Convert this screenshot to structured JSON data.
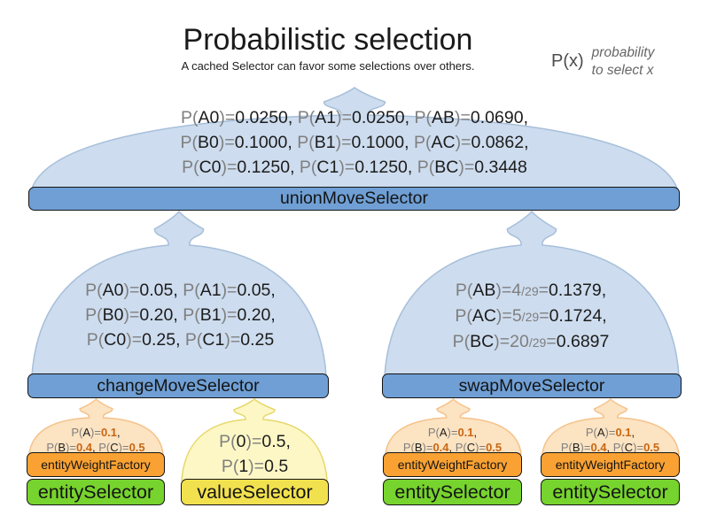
{
  "header": {
    "title": "Probabilistic selection",
    "subtitle": "A cached Selector can favor some selections over others."
  },
  "legend": {
    "symbol": "P(x)",
    "lines": [
      "probability",
      "to select x"
    ]
  },
  "colors": {
    "funnel_blue": "#cddcee",
    "funnel_blue_stroke": "#a7bfda",
    "funnel_orange": "#fce3c2",
    "funnel_orange_stroke": "#f5c28a",
    "funnel_yellow": "#fdf7c6",
    "funnel_yellow_stroke": "#e6d86b",
    "bar_blue": "#6f9fd4",
    "bar_orange": "#f9a233",
    "bar_green": "#77d32d",
    "bar_yellow": "#f2e14e",
    "text_gray": "#7f7f7f",
    "text_dark": "#1c1c1c",
    "value_orange": "#c96612"
  },
  "bars": {
    "union": "unionMoveSelector",
    "change": "changeMoveSelector",
    "swap": "swapMoveSelector",
    "entity_weight_factory": "entityWeightFactory",
    "entity_selector": "entitySelector",
    "value_selector": "valueSelector"
  },
  "funnels": {
    "union": {
      "lines": [
        [
          [
            "g",
            "P("
          ],
          [
            "b",
            "A0"
          ],
          [
            "g",
            ")="
          ],
          [
            "b",
            "0.0250"
          ],
          [
            "b",
            ", "
          ],
          [
            "g",
            "P("
          ],
          [
            "b",
            "A1"
          ],
          [
            "g",
            ")="
          ],
          [
            "b",
            "0.0250"
          ],
          [
            "b",
            ", "
          ],
          [
            "g",
            "P("
          ],
          [
            "b",
            "AB"
          ],
          [
            "g",
            ")="
          ],
          [
            "b",
            "0.0690"
          ],
          [
            "b",
            ","
          ]
        ],
        [
          [
            "g",
            "P("
          ],
          [
            "b",
            "B0"
          ],
          [
            "g",
            ")="
          ],
          [
            "b",
            "0.1000"
          ],
          [
            "b",
            ", "
          ],
          [
            "g",
            "P("
          ],
          [
            "b",
            "B1"
          ],
          [
            "g",
            ")="
          ],
          [
            "b",
            "0.1000"
          ],
          [
            "b",
            ", "
          ],
          [
            "g",
            "P("
          ],
          [
            "b",
            "AC"
          ],
          [
            "g",
            ")="
          ],
          [
            "b",
            "0.0862"
          ],
          [
            "b",
            ","
          ]
        ],
        [
          [
            "g",
            "P("
          ],
          [
            "b",
            "C0"
          ],
          [
            "g",
            ")="
          ],
          [
            "b",
            "0.1250"
          ],
          [
            "b",
            ", "
          ],
          [
            "g",
            "P("
          ],
          [
            "b",
            "C1"
          ],
          [
            "g",
            ")="
          ],
          [
            "b",
            "0.1250"
          ],
          [
            "b",
            ", "
          ],
          [
            "g",
            "P("
          ],
          [
            "b",
            "BC"
          ],
          [
            "g",
            ")="
          ],
          [
            "b",
            "0.3448"
          ]
        ]
      ]
    },
    "change": {
      "lines": [
        [
          [
            "g",
            "P("
          ],
          [
            "b",
            "A0"
          ],
          [
            "g",
            ")="
          ],
          [
            "b",
            "0.05"
          ],
          [
            "b",
            ", "
          ],
          [
            "g",
            "P("
          ],
          [
            "b",
            "A1"
          ],
          [
            "g",
            ")="
          ],
          [
            "b",
            "0.05"
          ],
          [
            "b",
            ","
          ]
        ],
        [
          [
            "g",
            "P("
          ],
          [
            "b",
            "B0"
          ],
          [
            "g",
            ")="
          ],
          [
            "b",
            "0.20"
          ],
          [
            "b",
            ", "
          ],
          [
            "g",
            "P("
          ],
          [
            "b",
            "B1"
          ],
          [
            "g",
            ")="
          ],
          [
            "b",
            "0.20"
          ],
          [
            "b",
            ","
          ]
        ],
        [
          [
            "g",
            "P("
          ],
          [
            "b",
            "C0"
          ],
          [
            "g",
            ")="
          ],
          [
            "b",
            "0.25"
          ],
          [
            "b",
            ", "
          ],
          [
            "g",
            "P("
          ],
          [
            "b",
            "C1"
          ],
          [
            "g",
            ")="
          ],
          [
            "b",
            "0.25"
          ]
        ]
      ]
    },
    "swap": {
      "lines": [
        [
          [
            "g",
            "P("
          ],
          [
            "b",
            "AB"
          ],
          [
            "g",
            ")="
          ],
          [
            "g",
            "4"
          ],
          [
            "gs",
            "/29"
          ],
          [
            "g",
            "="
          ],
          [
            "b",
            "0.1379"
          ],
          [
            "b",
            ","
          ]
        ],
        [
          [
            "g",
            "P("
          ],
          [
            "b",
            "AC"
          ],
          [
            "g",
            ")="
          ],
          [
            "g",
            "5"
          ],
          [
            "gs",
            "/29"
          ],
          [
            "g",
            "="
          ],
          [
            "b",
            "0.1724"
          ],
          [
            "b",
            ","
          ]
        ],
        [
          [
            "g",
            "P("
          ],
          [
            "b",
            "BC"
          ],
          [
            "g",
            ")="
          ],
          [
            "g",
            "20"
          ],
          [
            "gs",
            "/29"
          ],
          [
            "g",
            "="
          ],
          [
            "b",
            "0.6897"
          ]
        ]
      ]
    },
    "entity_weight": {
      "lines": [
        [
          [
            "g",
            "P("
          ],
          [
            "b",
            "A"
          ],
          [
            "g",
            ")="
          ],
          [
            "o",
            "0.1"
          ],
          [
            "b",
            ","
          ]
        ],
        [
          [
            "g",
            "P("
          ],
          [
            "b",
            "B"
          ],
          [
            "g",
            ")="
          ],
          [
            "o",
            "0.4"
          ],
          [
            "b",
            ", "
          ],
          [
            "g",
            "P("
          ],
          [
            "b",
            "C"
          ],
          [
            "g",
            ")="
          ],
          [
            "o",
            "0.5"
          ]
        ]
      ]
    },
    "value": {
      "lines": [
        [
          [
            "g",
            "P("
          ],
          [
            "b",
            "0"
          ],
          [
            "g",
            ")="
          ],
          [
            "b",
            "0.5"
          ],
          [
            "b",
            ","
          ]
        ],
        [
          [
            "g",
            "P("
          ],
          [
            "b",
            "1"
          ],
          [
            "g",
            ")="
          ],
          [
            "b",
            "0.5"
          ]
        ]
      ]
    }
  }
}
